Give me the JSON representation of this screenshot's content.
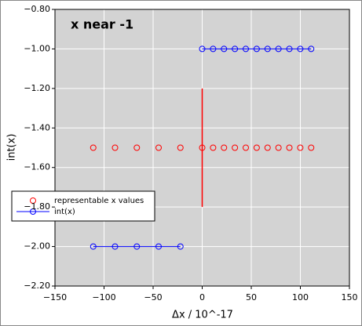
{
  "chart_data": {
    "type": "line",
    "title": "x near -1",
    "x_label": "Δx /  10^-17",
    "y_label": "int(x)",
    "xlim": [
      -150,
      150
    ],
    "ylim": [
      -2.2,
      -0.8
    ],
    "xticks": [
      {
        "value": -150,
        "label": "−150"
      },
      {
        "value": -100,
        "label": "−100"
      },
      {
        "value": -50,
        "label": "−50"
      },
      0,
      50,
      100,
      150
    ],
    "yticks": [
      {
        "value": -2.2,
        "label": "−2.20"
      },
      {
        "value": -2.0,
        "label": "−2.00"
      },
      {
        "value": -1.8,
        "label": "−1.80"
      },
      {
        "value": -1.6,
        "label": "−1.60"
      },
      {
        "value": -1.4,
        "label": "−1.40"
      },
      {
        "value": -1.2,
        "label": "−1.20"
      },
      {
        "value": -1.0,
        "label": "−1.00"
      },
      {
        "value": -0.8,
        "label": "−0.80"
      }
    ],
    "grid": true,
    "legend": "left",
    "series": [
      {
        "name": "representable x values",
        "color": "#ff0000",
        "line": false,
        "x": [
          -111,
          -88.8,
          -66.6,
          -44.4,
          -22.2,
          0,
          11.1,
          22.2,
          33.3,
          44.4,
          55.5,
          66.6,
          77.7,
          88.8,
          99.9,
          111
        ],
        "values": [
          -1.5,
          -1.5,
          -1.5,
          -1.5,
          -1.5,
          -1.5,
          -1.5,
          -1.5,
          -1.5,
          -1.5,
          -1.5,
          -1.5,
          -1.5,
          -1.5,
          -1.5,
          -1.5
        ]
      },
      {
        "name": "int(x)",
        "color": "#0000ff",
        "line": true,
        "x": [
          -111,
          -88.8,
          -66.6,
          -44.4,
          -22.2,
          null,
          0,
          11.1,
          22.2,
          33.3,
          44.4,
          55.5,
          66.6,
          77.7,
          88.8,
          99.9,
          111
        ],
        "values": [
          -2,
          -2,
          -2,
          -2,
          -2,
          null,
          -1,
          -1,
          -1,
          -1,
          -1,
          -1,
          -1,
          -1,
          -1,
          -1,
          -1
        ]
      }
    ],
    "vlines": [
      {
        "x": 0,
        "ymin": -1.8,
        "ymax": -1.2,
        "color": "#ff0000"
      }
    ]
  }
}
